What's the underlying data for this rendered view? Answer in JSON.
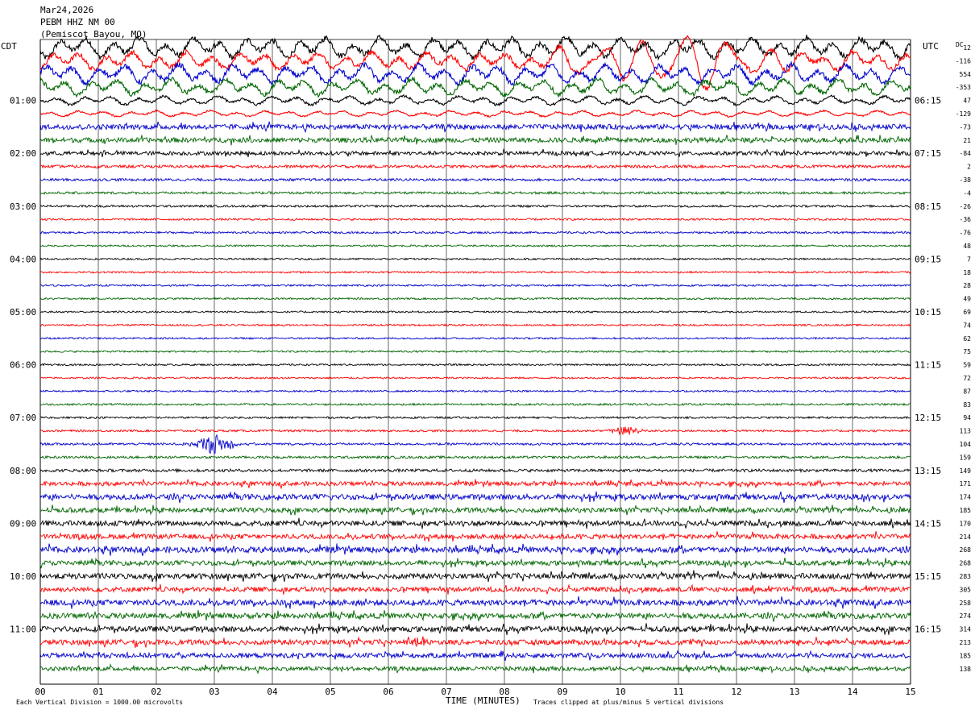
{
  "header": {
    "date": "Mar24,2026",
    "station": "PEBM HHZ NM 00",
    "location": "(Pemiscot Bayou, MO)"
  },
  "left_tz": "CDT",
  "right_tz": "UTC",
  "dc_label": "DC",
  "footer": {
    "scale": "Each Vertical Division = 1000.00 microvolts",
    "xaxis_title": "TIME (MINUTES)",
    "clip": "Traces clipped at plus/minus 5 vertical divisions"
  },
  "colors": {
    "trace_cycle": [
      "#000000",
      "#ff0000",
      "#0000cc",
      "#006600"
    ],
    "grid": "#000000"
  },
  "chart_data": {
    "type": "line",
    "subtype": "helicorder",
    "xlabel": "TIME (MINUTES)",
    "xlim": [
      0,
      15
    ],
    "x_ticks": [
      "00",
      "01",
      "02",
      "03",
      "04",
      "05",
      "06",
      "07",
      "08",
      "09",
      "10",
      "11",
      "12",
      "13",
      "14",
      "15"
    ],
    "row_minutes": 15,
    "left_hour_labels": [
      "01:00",
      "02:00",
      "03:00",
      "04:00",
      "05:00",
      "06:00",
      "07:00",
      "08:00",
      "09:00",
      "10:00",
      "11:00"
    ],
    "right_hour_labels": [
      "06:15",
      "07:15",
      "08:15",
      "09:15",
      "10:15",
      "11:15",
      "12:15",
      "13:15",
      "14:15",
      "15:15",
      "16:15"
    ],
    "dc_offsets": [
      "12",
      "-116",
      "554",
      "-353",
      "47",
      "-129",
      "-73",
      "21",
      "-84",
      "2",
      "-38",
      "-4",
      "-26",
      "-36",
      "-76",
      "48",
      "7",
      "18",
      "28",
      "49",
      "69",
      "74",
      "62",
      "75",
      "59",
      "72",
      "87",
      "83",
      "94",
      "113",
      "104",
      "159",
      "149",
      "171",
      "174",
      "185",
      "170",
      "214",
      "268",
      "268",
      "283",
      "305",
      "258",
      "274",
      "314",
      "213",
      "185",
      "138"
    ],
    "row_amplitude": [
      14,
      12,
      13,
      11,
      6,
      4,
      3.2,
      3,
      2.4,
      1.8,
      1.6,
      1.5,
      1.3,
      1.2,
      1.2,
      1.1,
      1.1,
      1.1,
      1.1,
      1.1,
      1.1,
      1.1,
      1.1,
      1.1,
      1.1,
      1.1,
      1.1,
      1.2,
      1.2,
      1.3,
      1.4,
      1.5,
      1.8,
      2.6,
      3.4,
      3.0,
      3.2,
      3.0,
      3.6,
      3.0,
      3.4,
      3.0,
      3.6,
      3.4,
      3.4,
      3.2,
      3.0,
      2.6
    ],
    "events": [
      {
        "row": 1,
        "minute": 11.0,
        "extent_minutes": 4.0,
        "peak": 2.2,
        "note": "large long-period wave train"
      },
      {
        "row": 29,
        "minute": 10.1,
        "extent_minutes": 0.5,
        "peak": 6
      },
      {
        "row": 30,
        "minute": 3.0,
        "extent_minutes": 0.7,
        "peak": 12
      },
      {
        "row": 45,
        "minute": 6.5,
        "extent_minutes": 0.3,
        "peak": 9
      }
    ]
  }
}
